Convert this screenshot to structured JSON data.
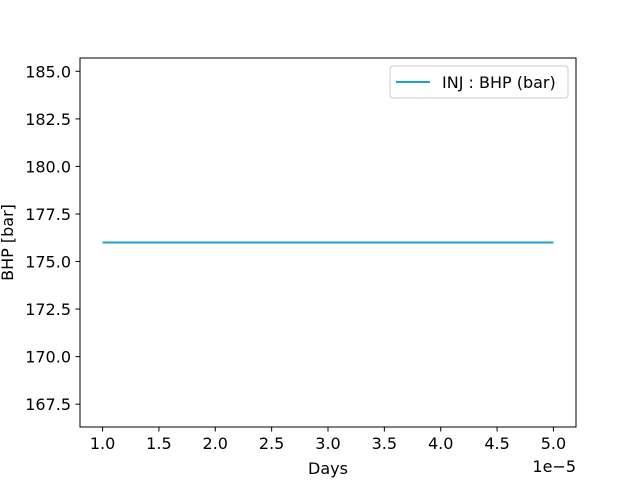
{
  "chart_data": {
    "type": "line",
    "xlabel": "Days",
    "ylabel": "BHP [bar]",
    "x_offset_label": "1e−5",
    "xlim": [
      0.8,
      5.2
    ],
    "ylim": [
      166.3,
      185.7
    ],
    "xticks": [
      1.0,
      1.5,
      2.0,
      2.5,
      3.0,
      3.5,
      4.0,
      4.5,
      5.0
    ],
    "xtick_labels": [
      "1.0",
      "1.5",
      "2.0",
      "2.5",
      "3.0",
      "3.5",
      "4.0",
      "4.5",
      "5.0"
    ],
    "yticks": [
      167.5,
      170.0,
      172.5,
      175.0,
      177.5,
      180.0,
      182.5,
      185.0
    ],
    "ytick_labels": [
      "167.5",
      "170.0",
      "172.5",
      "175.0",
      "177.5",
      "180.0",
      "182.5",
      "185.0"
    ],
    "grid": false,
    "legend_position": "top-right",
    "series": [
      {
        "name": "INJ : BHP (bar)",
        "color": "#1aa3cc",
        "x": [
          1.0,
          5.0
        ],
        "y": [
          176.0,
          176.0
        ]
      }
    ]
  }
}
